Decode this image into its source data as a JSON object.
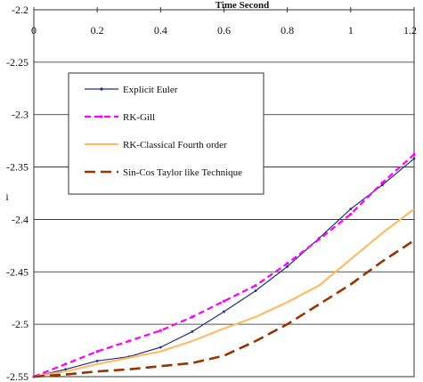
{
  "chart_data": {
    "type": "line",
    "title": "",
    "xlabel": "Time Second",
    "ylabel": "i",
    "xlim": [
      0,
      1.2
    ],
    "ylim": [
      -2.55,
      -2.2
    ],
    "x_axis_position": "top",
    "x_ticks": [
      "0",
      "0.2",
      "0.4",
      "0.6",
      "0.8",
      "1",
      "1.2"
    ],
    "y_ticks": [
      "-2.2",
      "-2.25",
      "-2.3",
      "-2.35",
      "-2.4",
      "-2.45",
      "-2.5",
      "-2.55"
    ],
    "grid": "horizontal",
    "legend_position": "upper-left",
    "series": [
      {
        "name": "Explicit Euler",
        "color": "#1f2f7f",
        "style": "solid-with-dot-markers",
        "x": [
          0,
          0.1,
          0.2,
          0.3,
          0.4,
          0.5,
          0.6,
          0.7,
          0.8,
          0.9,
          1.0,
          1.1,
          1.2
        ],
        "y": [
          -2.55,
          -2.543,
          -2.535,
          -2.531,
          -2.522,
          -2.507,
          -2.488,
          -2.468,
          -2.445,
          -2.418,
          -2.39,
          -2.367,
          -2.342
        ]
      },
      {
        "name": "RK-Gill",
        "color": "#ff00ff",
        "style": "dashed-with-markers",
        "x": [
          0,
          0.1,
          0.2,
          0.3,
          0.4,
          0.5,
          0.6,
          0.7,
          0.8,
          0.9,
          1.0,
          1.1,
          1.2
        ],
        "y": [
          -2.55,
          -2.538,
          -2.526,
          -2.516,
          -2.506,
          -2.493,
          -2.478,
          -2.463,
          -2.442,
          -2.419,
          -2.395,
          -2.365,
          -2.338
        ]
      },
      {
        "name": "RK-Classical Fourth order",
        "color": "#ffbb66",
        "style": "solid-with-markers",
        "x": [
          0,
          0.1,
          0.2,
          0.3,
          0.4,
          0.5,
          0.6,
          0.7,
          0.8,
          0.9,
          1.0,
          1.1,
          1.2
        ],
        "y": [
          -2.55,
          -2.545,
          -2.538,
          -2.532,
          -2.526,
          -2.516,
          -2.504,
          -2.493,
          -2.479,
          -2.463,
          -2.438,
          -2.413,
          -2.39
        ]
      },
      {
        "name": "Sin-Cos Taylor like Technique",
        "color": "#993300",
        "style": "long-dash",
        "x": [
          0,
          0.1,
          0.2,
          0.3,
          0.4,
          0.5,
          0.6,
          0.7,
          0.8,
          0.9,
          1.0,
          1.1,
          1.2
        ],
        "y": [
          -2.55,
          -2.548,
          -2.545,
          -2.543,
          -2.54,
          -2.537,
          -2.53,
          -2.516,
          -2.5,
          -2.481,
          -2.462,
          -2.44,
          -2.42
        ]
      }
    ]
  }
}
